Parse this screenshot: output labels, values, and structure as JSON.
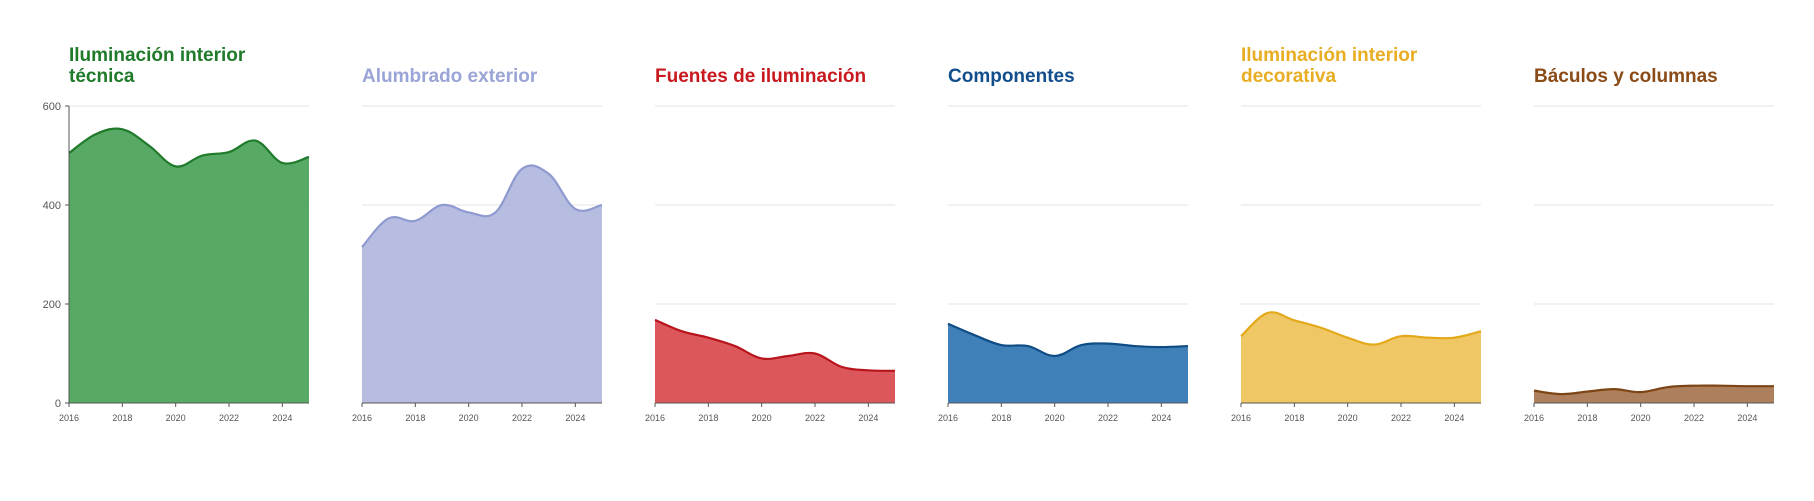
{
  "chart_data": [
    {
      "type": "area",
      "title": "Iluminación interior técnica",
      "color": "#3a9a4a",
      "title_color": "#1f7a2a",
      "line_color": "#1f7a2a",
      "x": [
        2016,
        2017,
        2018,
        2019,
        2020,
        2021,
        2022,
        2023,
        2024,
        2025
      ],
      "values": [
        505,
        543,
        553,
        520,
        478,
        500,
        507,
        530,
        485,
        497
      ],
      "ylim": [
        0,
        600
      ],
      "yticks": [
        "0",
        "200",
        "400",
        "600"
      ],
      "xticks": [
        "2016",
        "2018",
        "2020",
        "2022",
        "2024"
      ]
    },
    {
      "type": "area",
      "title": "Alumbrado exterior",
      "color": "#a9b1da",
      "title_color": "#9aa4d6",
      "line_color": "#8f9ad0",
      "x": [
        2016,
        2017,
        2018,
        2019,
        2020,
        2021,
        2022,
        2023,
        2024,
        2025
      ],
      "values": [
        315,
        373,
        368,
        400,
        385,
        385,
        473,
        463,
        392,
        400
      ],
      "ylim": [
        0,
        600
      ],
      "xticks": [
        "2016",
        "2018",
        "2020",
        "2022",
        "2024"
      ]
    },
    {
      "type": "area",
      "title": "Fuentes de iluminación",
      "color": "#d63a3f",
      "title_color": "#c8191f",
      "line_color": "#b8141b",
      "x": [
        2016,
        2017,
        2018,
        2019,
        2020,
        2021,
        2022,
        2023,
        2024,
        2025
      ],
      "values": [
        168,
        145,
        132,
        115,
        90,
        95,
        100,
        73,
        66,
        65
      ],
      "ylim": [
        0,
        600
      ],
      "xticks": [
        "2016",
        "2018",
        "2020",
        "2022",
        "2024"
      ]
    },
    {
      "type": "area",
      "title": "Componentes",
      "color": "#1f6aad",
      "title_color": "#124e8c",
      "line_color": "#0f4c86",
      "x": [
        2016,
        2017,
        2018,
        2019,
        2020,
        2021,
        2022,
        2023,
        2024,
        2025
      ],
      "values": [
        160,
        137,
        117,
        115,
        95,
        117,
        120,
        115,
        113,
        115
      ],
      "ylim": [
        0,
        600
      ],
      "xticks": [
        "2016",
        "2018",
        "2020",
        "2022",
        "2024"
      ]
    },
    {
      "type": "area",
      "title": "Iluminación interior decorativa",
      "color": "#ecbd4a",
      "title_color": "#e8ad22",
      "line_color": "#e3a91a",
      "x": [
        2016,
        2017,
        2018,
        2019,
        2020,
        2021,
        2022,
        2023,
        2024,
        2025
      ],
      "values": [
        135,
        182,
        167,
        152,
        132,
        118,
        135,
        132,
        132,
        145
      ],
      "ylim": [
        0,
        600
      ],
      "xticks": [
        "2016",
        "2018",
        "2020",
        "2022",
        "2024"
      ]
    },
    {
      "type": "area",
      "title": "Báculos y columnas",
      "color": "#a0683f",
      "title_color": "#8a4b17",
      "line_color": "#7d4515",
      "x": [
        2016,
        2017,
        2018,
        2019,
        2020,
        2021,
        2022,
        2023,
        2024,
        2025
      ],
      "values": [
        25,
        18,
        23,
        28,
        22,
        32,
        35,
        35,
        34,
        34
      ],
      "ylim": [
        0,
        600
      ],
      "xticks": [
        "2016",
        "2018",
        "2020",
        "2022",
        "2024"
      ]
    }
  ]
}
